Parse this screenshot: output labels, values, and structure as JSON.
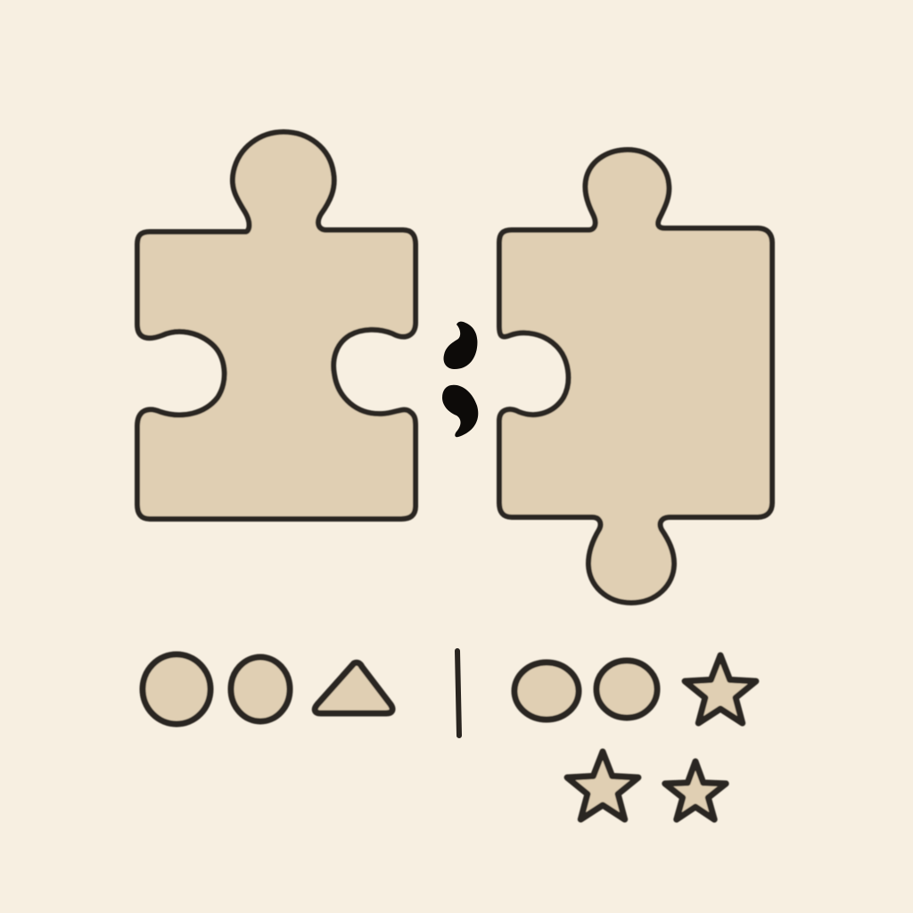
{
  "colors": {
    "background": "#f7efe1",
    "piece_fill": "#e0cfb3",
    "outline": "#2a2520",
    "separator_mark": "#0d0b09"
  },
  "illustration": {
    "left_piece_icon": "puzzle-piece-icon",
    "right_piece_icon": "puzzle-piece-icon",
    "separator_icon": "semicolon-icon",
    "left_group_icons": [
      "circle-icon",
      "circle-icon",
      "triangle-icon"
    ],
    "divider_icon": "vertical-bar-icon",
    "right_group_icons": [
      "circle-icon",
      "circle-icon",
      "star-icon",
      "star-icon",
      "star-icon"
    ]
  }
}
